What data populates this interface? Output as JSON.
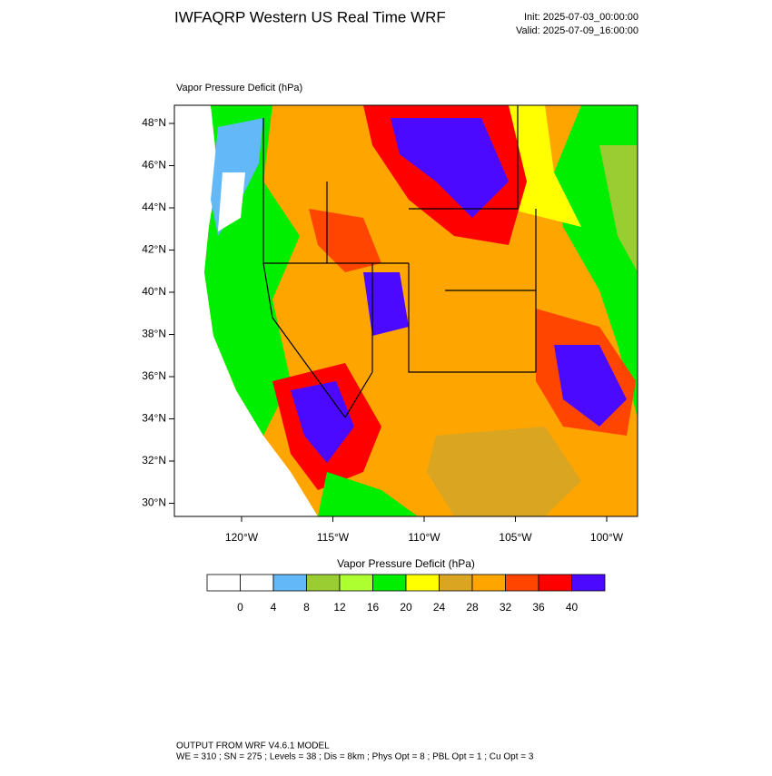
{
  "header": {
    "title": "IWFAQRP Western US Real Time WRF",
    "init": "Init: 2025-07-03_00:00:00",
    "valid": "Valid: 2025-07-09_16:00:00"
  },
  "map": {
    "field_label": "Vapor Pressure Deficit   (hPa)",
    "lat_labels": [
      "48°N",
      "46°N",
      "44°N",
      "42°N",
      "40°N",
      "38°N",
      "36°N",
      "34°N",
      "32°N",
      "30°N"
    ],
    "lon_labels": [
      "120°W",
      "115°W",
      "110°W",
      "105°W",
      "100°W"
    ]
  },
  "colorbar": {
    "title": "Vapor Pressure Deficit  (hPa)",
    "colors": [
      "#ffffff",
      "#ffffff",
      "#63b8f7",
      "#9acd32",
      "#adff2f",
      "#00ee00",
      "#ffff00",
      "#daa520",
      "#ffa500",
      "#ff4500",
      "#ff0000",
      "#4b0aff"
    ],
    "labels": [
      0,
      4,
      8,
      12,
      16,
      20,
      24,
      28,
      32,
      36,
      40
    ]
  },
  "footer": {
    "line1": "OUTPUT FROM WRF V4.6.1 MODEL",
    "line2": "WE = 310 ; SN = 275 ; Levels = 38 ; Dis = 8km ; Phys Opt = 8 ; PBL Opt = 1 ; Cu Opt = 3"
  }
}
